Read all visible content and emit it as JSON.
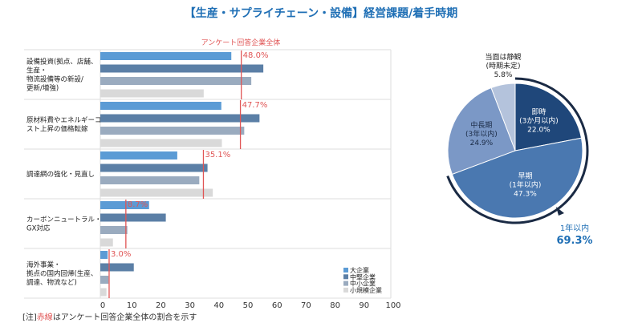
{
  "title": "【生産・サプライチェーン・設備】経営課題/着手時期",
  "note": {
    "prefix": "[注]",
    "red": "赤線",
    "suffix": "はアンケート回答企業全体の割合を示す"
  },
  "chart_data": [
    {
      "type": "bar",
      "orientation": "horizontal",
      "categories": [
        "設備投資(拠点、店舗、生産・物流設備等の新設/更新/増強)",
        "原材料費やエネルギーコスト上昇の価格転嫁",
        "調達網の強化・見直し",
        "カーボンニュートラル・GX対応",
        "海外事業・拠点の国内回帰(生産、調達、物流など)"
      ],
      "category_lines": [
        [
          "設備投資(拠点、店舗、",
          "生産・",
          "物流設備等の新設/",
          "更新/増強)"
        ],
        [
          "原材料費やエネルギーコ",
          "スト上昇の価格転嫁"
        ],
        [
          "調達網の強化・見直し"
        ],
        [
          "カーボンニュートラル・",
          "GX対応"
        ],
        [
          "海外事業・",
          "拠点の国内回帰(生産、",
          "調達、物流など)"
        ]
      ],
      "series": [
        {
          "name": "大企業",
          "color": "#5b9bd5",
          "values": [
            44.6,
            41.2,
            26.2,
            16.6,
            2.5
          ]
        },
        {
          "name": "中堅企業",
          "color": "#5b7fa6",
          "values": [
            55.5,
            54.2,
            36.5,
            22.3,
            11.4
          ]
        },
        {
          "name": "中小企業",
          "color": "#9aabbf",
          "values": [
            51.4,
            49.0,
            33.7,
            9.2,
            2.8
          ]
        },
        {
          "name": "小規模企業",
          "color": "#d9d9d9",
          "values": [
            35.2,
            41.4,
            38.3,
            4.3,
            2.1
          ]
        }
      ],
      "overall": {
        "label": "アンケート回答企業全体",
        "color": "#e05555",
        "values": [
          48.0,
          47.7,
          35.1,
          8.7,
          3.0
        ],
        "value_labels": [
          "48.0%",
          "47.7%",
          "35.1%",
          "8.7%",
          "3.0%"
        ]
      },
      "xlim": [
        0,
        100
      ],
      "xticks": [
        "0",
        "10",
        "20",
        "30",
        "40",
        "50",
        "60",
        "70",
        "80",
        "90",
        "100"
      ],
      "legend": "bottom-right",
      "grid": false
    },
    {
      "type": "pie",
      "start": "top",
      "direction": "clockwise",
      "slices": [
        {
          "label": [
            "即時",
            "(3か月以内)",
            "22.0%"
          ],
          "value": 22.0,
          "color": "#1f477a",
          "text_color": "#fff"
        },
        {
          "label": [
            "早期",
            "(1年以内)",
            "47.3%"
          ],
          "value": 47.3,
          "color": "#4a78b0",
          "text_color": "#fff"
        },
        {
          "label": [
            "中長期",
            "(3年以内)",
            "24.9%"
          ],
          "value": 24.9,
          "color": "#7b98c6",
          "text_color": "#1a2a44"
        },
        {
          "label": [
            "当面は静観",
            "(時期未定)",
            "5.8%"
          ],
          "value": 5.8,
          "color": "#b4c3dc",
          "text_color": "#222"
        }
      ],
      "bracket": {
        "label": "1年以内",
        "value_label": "69.3%",
        "value": 69.3,
        "color": "#1a2a44",
        "text_color": "#1f6fb5"
      }
    }
  ]
}
